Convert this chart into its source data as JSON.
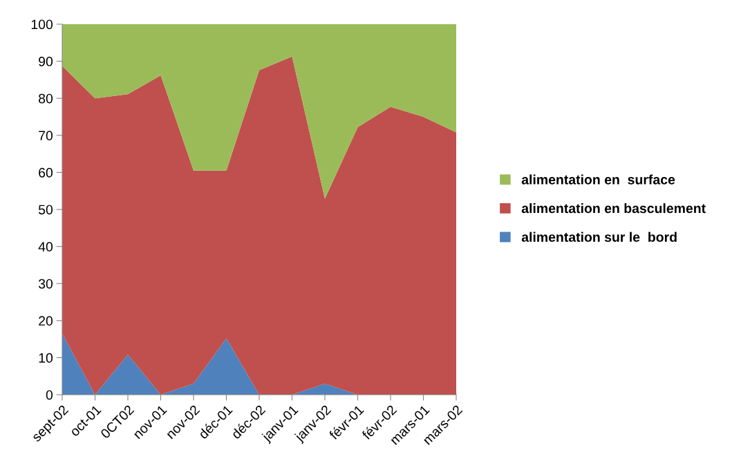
{
  "chart_data": {
    "type": "area",
    "stacked": true,
    "categories": [
      "sept-02",
      "oct-01",
      "0CT02",
      "nov-01",
      "nov-02",
      "déc-01",
      "déc-02",
      "janv-01",
      "janv-02",
      "févr-01",
      "févr-02",
      "mars-01",
      "mars-02"
    ],
    "series": [
      {
        "name": "alimentation sur le  bord",
        "color": "#4f81bd",
        "values": [
          16.5,
          0,
          10.8,
          0,
          3,
          15.2,
          0,
          0,
          3,
          0,
          0,
          0,
          0
        ]
      },
      {
        "name": "alimentation en basculement",
        "color": "#c0504d",
        "values": [
          72.2,
          80,
          70.3,
          86.2,
          57.5,
          45.3,
          87.6,
          91.3,
          49.9,
          72.2,
          77.7,
          75,
          70.8
        ]
      },
      {
        "name": "alimentation en  surface",
        "color": "#9bbb59",
        "values": [
          11.3,
          20,
          18.9,
          13.8,
          39.5,
          39.5,
          12.4,
          8.7,
          47.1,
          27.8,
          22.3,
          25,
          29.2
        ]
      }
    ],
    "ylim": [
      0,
      100
    ],
    "yticks": [
      0,
      10,
      20,
      30,
      40,
      50,
      60,
      70,
      80,
      90,
      100
    ],
    "grid": false,
    "legend": "right"
  }
}
